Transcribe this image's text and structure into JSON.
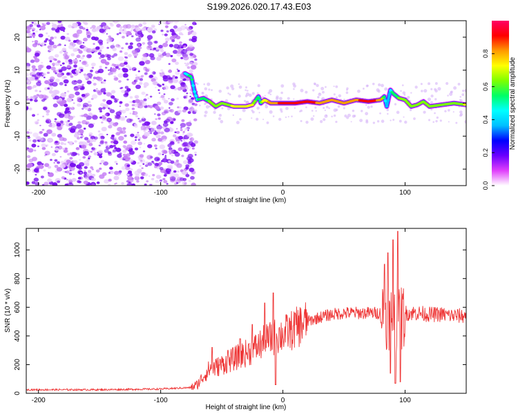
{
  "title": "S199.2026.020.17.43.E03",
  "chart_data": [
    {
      "type": "heatmap",
      "xlabel": "Height of straight line (km)",
      "ylabel": "Frequency (Hz)",
      "xlim": [
        -210,
        150
      ],
      "ylim": [
        -25,
        25
      ],
      "xticks": [
        -200,
        -100,
        0,
        100
      ],
      "yticks": [
        -20,
        -10,
        0,
        10,
        20
      ],
      "colorbar": {
        "label": "Normalized spectral amplitude",
        "range": [
          0.0,
          1.0
        ],
        "ticks": [
          "0.0",
          "0.2",
          "0.4",
          "0.6",
          "0.8"
        ],
        "tick_values": [
          0.0,
          0.2,
          0.4,
          0.6,
          0.8
        ],
        "colors": [
          "#ffffff",
          "#e040fb",
          "#6a00ff",
          "#0000ff",
          "#00bfff",
          "#00ffff",
          "#00ff66",
          "#7fff00",
          "#ffff00",
          "#ff9900",
          "#ff0000",
          "#ff0066"
        ]
      },
      "noise_region_x": [
        -210,
        -75
      ],
      "ridge": {
        "x": [
          -80,
          -75,
          -72,
          -70,
          -65,
          -60,
          -55,
          -50,
          -40,
          -30,
          -25,
          -20,
          -18,
          -15,
          -10,
          0,
          10,
          20,
          30,
          40,
          50,
          60,
          70,
          80,
          83,
          85,
          88,
          90,
          95,
          100,
          105,
          110,
          115,
          120,
          130,
          140,
          150
        ],
        "y": [
          9,
          8,
          3,
          1,
          1.5,
          0.5,
          -1,
          0,
          -1,
          -1,
          -0.5,
          2,
          0,
          1,
          0,
          0,
          0,
          0.5,
          0,
          1,
          0,
          1,
          0.5,
          1,
          2,
          -1,
          4,
          3,
          1.5,
          1,
          -1,
          -0.5,
          0.5,
          -1,
          -0.5,
          0,
          -0.5
        ],
        "amplitude": [
          0.45,
          0.55,
          0.4,
          0.5,
          0.55,
          0.6,
          0.65,
          0.6,
          0.7,
          0.7,
          0.7,
          0.5,
          0.6,
          0.75,
          0.8,
          0.9,
          0.95,
          0.9,
          0.85,
          0.8,
          0.8,
          0.85,
          0.9,
          0.85,
          0.5,
          0.35,
          0.4,
          0.55,
          0.6,
          0.65,
          0.6,
          0.65,
          0.6,
          0.6,
          0.65,
          0.6,
          0.7
        ]
      }
    },
    {
      "type": "line",
      "xlabel": "Height of straight line (km)",
      "ylabel": "SNR (10 * v/v)",
      "xlim": [
        -210,
        150
      ],
      "ylim": [
        0,
        1150
      ],
      "xticks": [
        -200,
        -100,
        0,
        100
      ],
      "yticks": [
        0,
        200,
        400,
        600,
        800,
        1000
      ],
      "color": "#ee3333",
      "envelope": {
        "x": [
          -210,
          -150,
          -100,
          -75,
          -70,
          -65,
          -60,
          -55,
          -50,
          -45,
          -40,
          -35,
          -30,
          -25,
          -20,
          -15,
          -10,
          -5,
          0,
          5,
          10,
          15,
          20,
          30,
          40,
          50,
          60,
          70,
          80,
          85,
          90,
          95,
          100,
          110,
          120,
          130,
          140,
          150
        ],
        "y": [
          25,
          25,
          30,
          40,
          60,
          120,
          170,
          180,
          200,
          220,
          240,
          260,
          280,
          300,
          330,
          360,
          380,
          400,
          410,
          430,
          450,
          480,
          500,
          530,
          550,
          560,
          560,
          560,
          560,
          550,
          520,
          500,
          560,
          560,
          550,
          550,
          540,
          540
        ]
      },
      "spikes": [
        {
          "x": -58,
          "y": 320
        },
        {
          "x": -45,
          "y": 300
        },
        {
          "x": -35,
          "y": 380
        },
        {
          "x": -25,
          "y": 480
        },
        {
          "x": -15,
          "y": 630
        },
        {
          "x": -8,
          "y": 700
        },
        {
          "x": -6,
          "y": 60
        },
        {
          "x": 10,
          "y": 560
        },
        {
          "x": 83,
          "y": 900
        },
        {
          "x": 86,
          "y": 980
        },
        {
          "x": 88,
          "y": 140
        },
        {
          "x": 90,
          "y": 1070
        },
        {
          "x": 92,
          "y": 70
        },
        {
          "x": 94,
          "y": 1130
        },
        {
          "x": 96,
          "y": 80
        }
      ]
    }
  ]
}
